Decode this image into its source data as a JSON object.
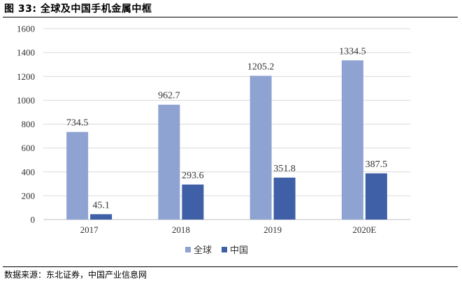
{
  "figure": {
    "title": "图 33: 全球及中国手机金属中框",
    "source": "数据来源：东北证券，中国产业信息网"
  },
  "chart_data": {
    "type": "bar",
    "categories": [
      "2017",
      "2018",
      "2019",
      "2020E"
    ],
    "series": [
      {
        "name": "全球",
        "values": [
          734.5,
          962.7,
          1205.2,
          1334.5
        ],
        "color": "#8FA3D3"
      },
      {
        "name": "中国",
        "values": [
          45.1,
          293.6,
          351.8,
          387.5
        ],
        "color": "#3F5FA6"
      }
    ],
    "yticks": [
      "0",
      "200",
      "400",
      "600",
      "800",
      "1000",
      "1200",
      "1400",
      "1600"
    ],
    "ylim": [
      0,
      1600
    ],
    "grid": true,
    "legend": "bottom",
    "title": "",
    "xlabel": "",
    "ylabel": ""
  }
}
